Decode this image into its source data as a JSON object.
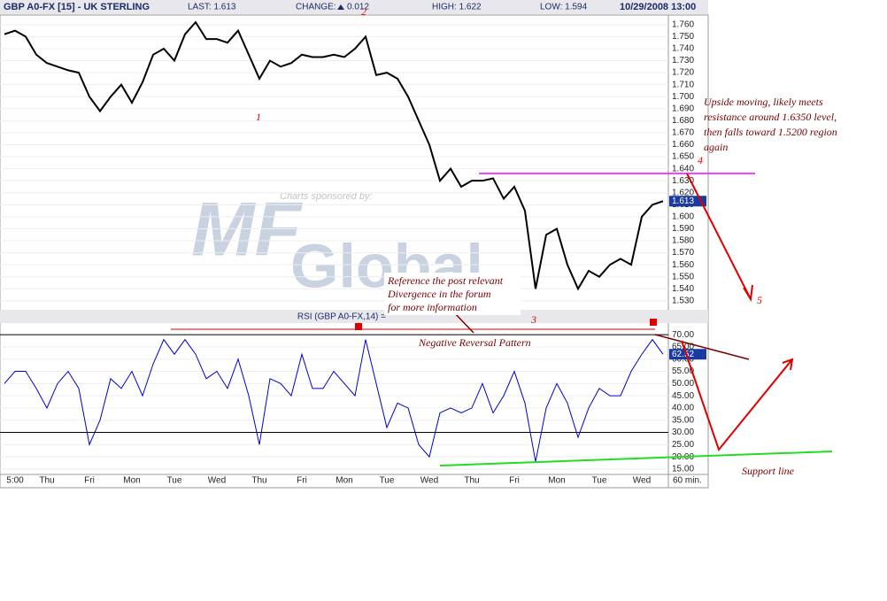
{
  "header": {
    "title": "GBP A0-FX [15] - UK STERLING",
    "last": "LAST: 1.613",
    "change": "CHANGE:",
    "change_value": "0.012",
    "high": "HIGH: 1.622",
    "low": "LOW: 1.594",
    "datetime": "10/29/2008 13:00"
  },
  "watermark": {
    "sponsor": "Charts sponsored by:",
    "logo": "MF",
    "logo_name": "Global"
  },
  "chart_data": [
    {
      "type": "line",
      "name": "GBP A0-FX",
      "color": "#000000",
      "last_label": "1.613",
      "values": [
        1.752,
        1.755,
        1.75,
        1.735,
        1.728,
        1.725,
        1.722,
        1.72,
        1.7,
        1.688,
        1.7,
        1.71,
        1.695,
        1.712,
        1.735,
        1.74,
        1.73,
        1.752,
        1.762,
        1.748,
        1.748,
        1.745,
        1.755,
        1.735,
        1.715,
        1.73,
        1.725,
        1.728,
        1.735,
        1.733,
        1.733,
        1.735,
        1.733,
        1.74,
        1.75,
        1.718,
        1.72,
        1.715,
        1.7,
        1.68,
        1.66,
        1.63,
        1.64,
        1.625,
        1.63,
        1.63,
        1.632,
        1.615,
        1.625,
        1.605,
        1.54,
        1.585,
        1.59,
        1.56,
        1.54,
        1.555,
        1.55,
        1.56,
        1.565,
        1.56,
        1.6,
        1.61,
        1.613
      ],
      "ylim": [
        1.5225,
        1.768
      ],
      "yticks": [
        {
          "value": 1.53,
          "label": "1.530"
        },
        {
          "value": 1.54,
          "label": "1.540"
        },
        {
          "value": 1.55,
          "label": "1.550"
        },
        {
          "value": 1.56,
          "label": "1.560"
        },
        {
          "value": 1.57,
          "label": "1.570"
        },
        {
          "value": 1.58,
          "label": "1.580"
        },
        {
          "value": 1.59,
          "label": "1.590"
        },
        {
          "value": 1.6,
          "label": "1.600"
        },
        {
          "value": 1.61,
          "label": "1.610"
        },
        {
          "value": 1.62,
          "label": "1.620"
        },
        {
          "value": 1.63,
          "label": "1.630"
        },
        {
          "value": 1.64,
          "label": "1.640"
        },
        {
          "value": 1.65,
          "label": "1.650"
        },
        {
          "value": 1.66,
          "label": "1.660"
        },
        {
          "value": 1.67,
          "label": "1.670"
        },
        {
          "value": 1.68,
          "label": "1.680"
        },
        {
          "value": 1.69,
          "label": "1.690"
        },
        {
          "value": 1.7,
          "label": "1.700"
        },
        {
          "value": 1.71,
          "label": "1.710"
        },
        {
          "value": 1.72,
          "label": "1.720"
        },
        {
          "value": 1.73,
          "label": "1.730"
        },
        {
          "value": 1.74,
          "label": "1.740"
        },
        {
          "value": 1.75,
          "label": "1.750"
        },
        {
          "value": 1.76,
          "label": "1.760"
        }
      ],
      "grid": true
    },
    {
      "type": "line",
      "name": "RSI (GBP A0-FX,14) =",
      "color": "#0000cc",
      "last_label": "62.52",
      "categories": [
        null,
        "5:00",
        null,
        null,
        "Thu",
        null,
        null,
        null,
        "Fri",
        null,
        null,
        null,
        "Mon",
        null,
        null,
        null,
        "Tue",
        null,
        null,
        null,
        "Wed",
        null,
        null,
        null,
        "Thu",
        null,
        null,
        null,
        "Fri",
        null,
        null,
        null,
        "Mon",
        null,
        null,
        null,
        "Tue",
        null,
        null,
        null,
        "Wed",
        null,
        null,
        null,
        "Thu",
        null,
        null,
        null,
        "Fri",
        null,
        null,
        null,
        "Mon",
        null,
        null,
        null,
        "Tue",
        null,
        null,
        null,
        "Wed",
        null,
        null
      ],
      "x_unit": "60 min.",
      "values": [
        50,
        55,
        55,
        48,
        40,
        50,
        55,
        48,
        25,
        35,
        52,
        48,
        55,
        45,
        58,
        68,
        62,
        68,
        62,
        52,
        55,
        48,
        60,
        45,
        25,
        52,
        50,
        45,
        62,
        48,
        48,
        55,
        50,
        45,
        68,
        50,
        32,
        42,
        40,
        25,
        20,
        38,
        40,
        38,
        40,
        50,
        38,
        45,
        55,
        42,
        18,
        40,
        50,
        42,
        28,
        40,
        48,
        45,
        45,
        55,
        62,
        68,
        62
      ],
      "ylim": [
        12.8,
        74.4
      ],
      "yticks": [
        {
          "value": 15,
          "label": "15.00"
        },
        {
          "value": 20,
          "label": "20.00"
        },
        {
          "value": 25,
          "label": "25.00"
        },
        {
          "value": 30,
          "label": "30.00"
        },
        {
          "value": 35,
          "label": "35.00"
        },
        {
          "value": 40,
          "label": "40.00"
        },
        {
          "value": 45,
          "label": "45.00"
        },
        {
          "value": 50,
          "label": "50.00"
        },
        {
          "value": 55,
          "label": "55.00"
        },
        {
          "value": 60,
          "label": "60.00"
        },
        {
          "value": 65,
          "label": "65.00"
        },
        {
          "value": 70,
          "label": "70.00"
        }
      ],
      "levels": [
        30,
        70
      ],
      "grid": true
    }
  ],
  "annotations": {
    "n1": "1",
    "n2": "2",
    "n3": "3",
    "n4": "4",
    "n5": "5",
    "forecast": [
      "Upside moving, likely meets",
      "resistance around 1.6350 level,",
      "then falls toward 1.5200 region",
      "again"
    ],
    "reference": [
      "Reference the post relevant",
      "Divergence  in the forum",
      "for more information"
    ],
    "pattern": "Negative Reversal Pattern",
    "support": "Support line"
  }
}
